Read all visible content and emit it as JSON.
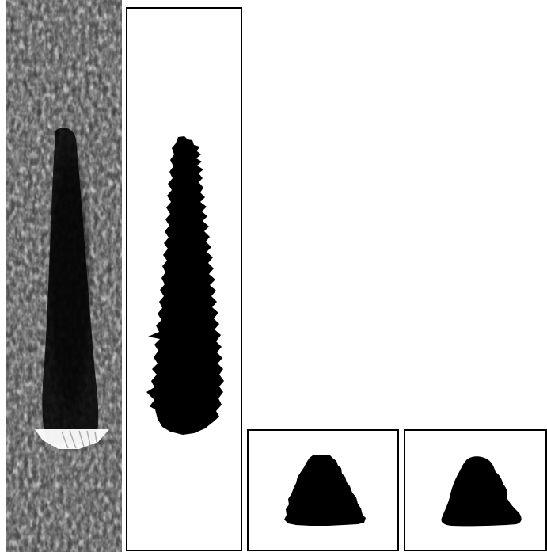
{
  "figure": {
    "panels": [
      {
        "id": "ultrasound",
        "kind": "grayscale-texture-image",
        "colors": {
          "bright": "#ffffff",
          "dark": "#000000"
        }
      },
      {
        "id": "segmentation-tall",
        "kind": "binary-mask",
        "colors": {
          "mask": "#000000",
          "background": "#ffffff"
        }
      },
      {
        "id": "segmentation-small-1",
        "kind": "binary-mask",
        "colors": {
          "mask": "#000000",
          "background": "#ffffff"
        }
      },
      {
        "id": "segmentation-small-2",
        "kind": "binary-mask",
        "colors": {
          "mask": "#000000",
          "background": "#ffffff"
        }
      }
    ]
  }
}
